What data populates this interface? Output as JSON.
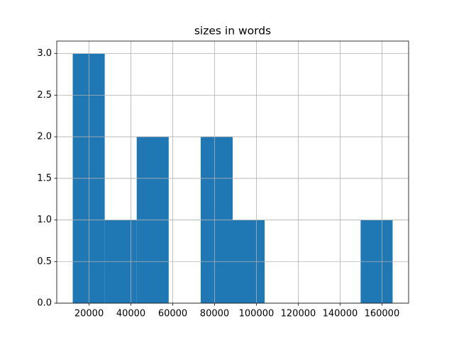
{
  "chart_data": {
    "type": "histogram",
    "title": "sizes in words",
    "bins": [
      12200,
      27490,
      42780,
      58070,
      73360,
      88650,
      103940,
      119230,
      134520,
      149810,
      165100
    ],
    "values": [
      3,
      1,
      2,
      0,
      2,
      1,
      0,
      0,
      0,
      1
    ],
    "color": "#1f77b4",
    "xlim": [
      4555,
      172745
    ],
    "xticks": [
      20000,
      40000,
      60000,
      80000,
      100000,
      120000,
      140000,
      160000
    ],
    "ylim": [
      0,
      3.15
    ],
    "yticks": [
      {
        "value": 0,
        "label": "0.0"
      },
      0.5,
      {
        "value": 1,
        "label": "1.0"
      },
      1.5,
      {
        "value": 2,
        "label": "2.0"
      },
      2.5,
      {
        "value": 3,
        "label": "3.0"
      }
    ],
    "grid": true
  }
}
